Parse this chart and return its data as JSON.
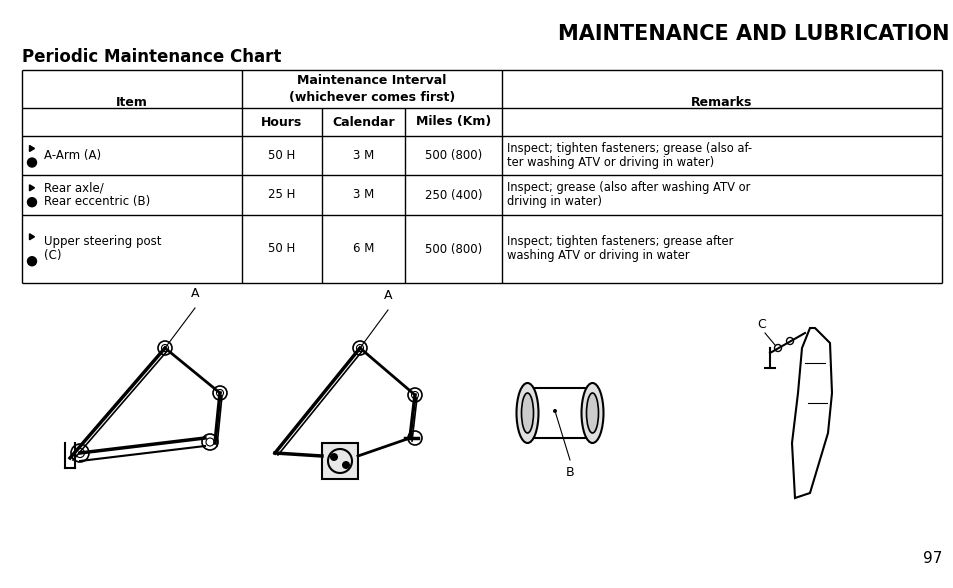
{
  "title": "MAINTENANCE AND LUBRICATION",
  "subtitle": "Periodic Maintenance Chart",
  "bg_color": "#ffffff",
  "title_fontsize": 15,
  "subtitle_fontsize": 12,
  "table": {
    "rows": [
      {
        "item": "A-Arm (A)",
        "item2": "",
        "hours": "50 H",
        "calendar": "3 M",
        "miles": "500 (800)",
        "remarks1": "Inspect; tighten fasteners; grease (also af-",
        "remarks2": "ter washing ATV or driving in water)"
      },
      {
        "item": "Rear axle/",
        "item2": "Rear eccentric (B)",
        "hours": "25 H",
        "calendar": "3 M",
        "miles": "250 (400)",
        "remarks1": "Inspect; grease (also after washing ATV or",
        "remarks2": "driving in water)"
      },
      {
        "item": "Upper steering post",
        "item2": "(C)",
        "hours": "50 H",
        "calendar": "6 M",
        "miles": "500 (800)",
        "remarks1": "Inspect; tighten fasteners; grease after",
        "remarks2": "washing ATV or driving in water"
      }
    ]
  },
  "page_number": "97"
}
